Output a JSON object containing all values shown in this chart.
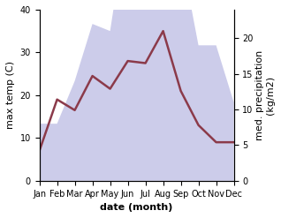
{
  "months": [
    "Jan",
    "Feb",
    "Mar",
    "Apr",
    "May",
    "Jun",
    "Jul",
    "Aug",
    "Sep",
    "Oct",
    "Nov",
    "Dec"
  ],
  "x": [
    0,
    1,
    2,
    3,
    4,
    5,
    6,
    7,
    8,
    9,
    10,
    11
  ],
  "temp": [
    7,
    19,
    16.5,
    24.5,
    21.5,
    28,
    27.5,
    35,
    21,
    13,
    9,
    9
  ],
  "precip": [
    8,
    8,
    14,
    22,
    21,
    37,
    35,
    39,
    32,
    19,
    19,
    11
  ],
  "temp_color": "#8B3A4A",
  "precip_color": "#aaaadd",
  "precip_alpha": 0.6,
  "temp_ylim": [
    0,
    40
  ],
  "precip_ylim": [
    0,
    24
  ],
  "precip_yticks": [
    0,
    5,
    10,
    15,
    20
  ],
  "temp_yticks": [
    0,
    10,
    20,
    30,
    40
  ],
  "xlabel": "date (month)",
  "ylabel_left": "max temp (C)",
  "ylabel_right": "med. precipitation\n(kg/m2)",
  "label_fontsize": 8,
  "tick_fontsize": 7,
  "line_width": 1.8,
  "precip_scale_max": 40.0,
  "precip_axis_max": 24.0
}
